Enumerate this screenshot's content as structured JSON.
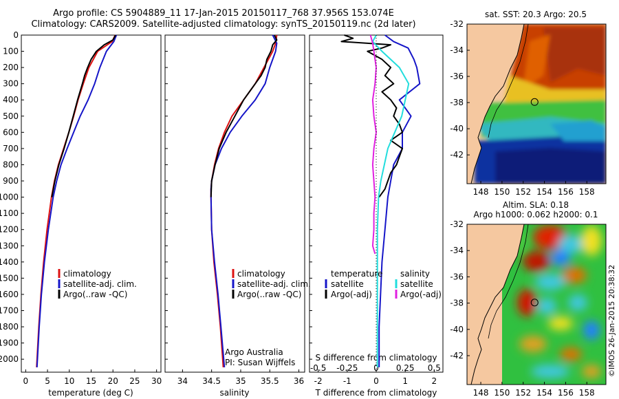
{
  "header": {
    "title_line1": "Argo profile: CS 5904889_11 17-Jan-2015 20150117_768 37.956S 153.074E",
    "title_line2": "Climatology: CARS2009. Satellite-adjusted climatology: synTS_20150119.nc (2d later)"
  },
  "colors": {
    "climatology": "#dd1111",
    "satellite": "#1515c8",
    "argo": "#000000",
    "sat_diff": "#22dddd",
    "argo_diff": "#e020e0",
    "land": "#f5c8a0"
  },
  "chart_data": [
    {
      "id": "temperature",
      "type": "line",
      "xlabel": "temperature (deg C)",
      "ylabel": "",
      "xlim": [
        -1,
        31
      ],
      "ylim": [
        2080,
        0
      ],
      "xticks": [
        "0",
        "5",
        "10",
        "15",
        "20",
        "25",
        "30"
      ],
      "xtick_values": [
        0,
        5,
        10,
        15,
        20,
        25,
        30
      ],
      "yticks": [
        "0",
        "100",
        "200",
        "300",
        "400",
        "500",
        "600",
        "700",
        "800",
        "900",
        "1000",
        "1100",
        "1200",
        "1300",
        "1400",
        "1500",
        "1600",
        "1700",
        "1800",
        "1900",
        "2000"
      ],
      "ytick_values": [
        0,
        100,
        200,
        300,
        400,
        500,
        600,
        700,
        800,
        900,
        1000,
        1100,
        1200,
        1300,
        1400,
        1500,
        1600,
        1700,
        1800,
        1900,
        2000
      ],
      "legend": [
        "climatology",
        "satellite-adj. clim.",
        "Argo(..raw -QC)"
      ],
      "series": [
        {
          "name": "climatology",
          "color_key": "climatology",
          "depth": [
            0,
            40,
            100,
            200,
            300,
            400,
            500,
            600,
            700,
            800,
            900,
            1000,
            1200,
            1400,
            1600,
            1800,
            2050
          ],
          "values": [
            20.5,
            19.8,
            16.5,
            14.5,
            13.2,
            12.0,
            11.0,
            9.9,
            8.7,
            7.5,
            6.6,
            5.9,
            4.9,
            4.1,
            3.5,
            3.0,
            2.5
          ]
        },
        {
          "name": "satellite-adj. clim.",
          "color_key": "satellite",
          "depth": [
            0,
            40,
            100,
            200,
            300,
            400,
            500,
            600,
            700,
            800,
            900,
            1000,
            1200,
            1400,
            1600,
            1800,
            2050
          ],
          "values": [
            20.8,
            20.2,
            18.5,
            17.0,
            15.8,
            14.3,
            12.5,
            11.0,
            9.5,
            8.1,
            7.1,
            6.3,
            5.2,
            4.3,
            3.6,
            3.1,
            2.6
          ]
        },
        {
          "name": "Argo(..raw -QC)",
          "color_key": "argo",
          "depth": [
            0,
            30,
            60,
            100,
            150,
            200,
            250,
            300,
            400,
            500,
            600,
            700,
            800,
            900,
            1000
          ],
          "values": [
            20.6,
            20.0,
            18.0,
            16.2,
            15.0,
            14.2,
            13.5,
            13.0,
            11.9,
            10.9,
            9.9,
            8.8,
            7.6,
            6.7,
            6.0
          ]
        }
      ]
    },
    {
      "id": "salinity",
      "type": "line",
      "xlabel": "salinity",
      "ylabel": "",
      "xlim": [
        33.7,
        36.1
      ],
      "ylim": [
        2080,
        0
      ],
      "xticks": [
        "34",
        "34.5",
        "35",
        "35.5",
        "36"
      ],
      "xtick_values": [
        34,
        34.5,
        35,
        35.5,
        36
      ],
      "legend": [
        "climatology",
        "satellite-adj. clim.",
        "Argo(..raw -QC)"
      ],
      "annotation": [
        "Argo Australia",
        "PI: Susan Wijffels"
      ],
      "series": [
        {
          "name": "climatology",
          "color_key": "climatology",
          "depth": [
            0,
            50,
            100,
            200,
            300,
            400,
            500,
            600,
            700,
            800,
            900,
            950,
            1000,
            1200,
            1400,
            1600,
            1800,
            2050
          ],
          "values": [
            35.62,
            35.6,
            35.55,
            35.4,
            35.25,
            35.05,
            34.85,
            34.72,
            34.62,
            34.55,
            34.5,
            34.49,
            34.49,
            34.5,
            34.54,
            34.6,
            34.65,
            34.7
          ]
        },
        {
          "name": "satellite-adj. clim.",
          "color_key": "satellite",
          "depth": [
            0,
            50,
            100,
            200,
            300,
            400,
            500,
            600,
            700,
            800,
            900,
            950,
            1000,
            1200,
            1400,
            1600,
            1800,
            2050
          ],
          "values": [
            35.55,
            35.62,
            35.6,
            35.5,
            35.42,
            35.25,
            35.02,
            34.82,
            34.67,
            34.56,
            34.5,
            34.49,
            34.49,
            34.5,
            34.55,
            34.61,
            34.66,
            34.72
          ]
        },
        {
          "name": "Argo(..raw -QC)",
          "color_key": "argo",
          "depth": [
            0,
            30,
            60,
            100,
            150,
            200,
            250,
            300,
            400,
            500,
            600,
            700,
            800,
            900,
            1000
          ],
          "values": [
            35.58,
            35.62,
            35.55,
            35.52,
            35.45,
            35.42,
            35.35,
            35.25,
            35.05,
            34.9,
            34.75,
            34.63,
            34.56,
            34.5,
            34.49
          ]
        }
      ]
    },
    {
      "id": "differences",
      "type": "line",
      "xlabel": "T difference from climatology",
      "x2label": "S difference from climatology",
      "xlim": [
        -2.3,
        2.3
      ],
      "ylim": [
        2080,
        0
      ],
      "xticks": [
        "-2",
        "-1",
        "0",
        "1",
        "2"
      ],
      "xtick_values": [
        -2,
        -1,
        0,
        1,
        2
      ],
      "x2ticks": [
        "-0.5",
        "-0.25",
        "0",
        "0.25",
        "0.5"
      ],
      "x2tick_values": [
        -0.5,
        -0.25,
        0,
        0.25,
        0.5
      ],
      "legend_left_title": "temperature",
      "legend_right_title": "salinity",
      "legend_left": [
        "satellite",
        "Argo(-adj)"
      ],
      "legend_right": [
        "satellite",
        "Argo(-adj)"
      ],
      "series": [
        {
          "name": "T satellite",
          "color_key": "satellite",
          "depth": [
            0,
            40,
            80,
            150,
            200,
            300,
            400,
            500,
            600,
            700,
            800,
            900,
            1000,
            1200,
            1400,
            1600,
            1800,
            2050
          ],
          "values": [
            0.3,
            0.6,
            1.1,
            1.3,
            1.4,
            1.5,
            0.8,
            1.2,
            0.9,
            0.9,
            0.6,
            0.5,
            0.4,
            0.3,
            0.2,
            0.15,
            0.1,
            0.1
          ]
        },
        {
          "name": "T Argo(-adj)",
          "color_key": "argo",
          "depth": [
            0,
            20,
            40,
            60,
            80,
            100,
            150,
            200,
            250,
            300,
            350,
            400,
            450,
            500,
            550,
            600,
            650,
            700,
            750,
            800,
            850,
            900,
            950,
            1000
          ],
          "values": [
            -1.1,
            -0.8,
            -1.2,
            0.5,
            0.2,
            -0.3,
            0.2,
            0.5,
            0.3,
            0.6,
            0.2,
            0.5,
            0.7,
            0.6,
            0.8,
            0.9,
            0.5,
            0.9,
            0.8,
            0.7,
            0.5,
            0.4,
            0.3,
            0.1
          ]
        },
        {
          "name": "S satellite",
          "color_key": "sat_diff",
          "depth": [
            0,
            40,
            100,
            200,
            300,
            400,
            500,
            600,
            700,
            800,
            900,
            1000,
            1200,
            1400,
            1600,
            1800,
            2050
          ],
          "values": [
            0.0,
            -0.03,
            0.05,
            0.2,
            0.28,
            0.25,
            0.22,
            0.16,
            0.1,
            0.07,
            0.04,
            0.02,
            0.01,
            0.01,
            0.01,
            0.01,
            0.01
          ]
        },
        {
          "name": "S Argo(-adj)",
          "color_key": "argo_diff",
          "depth": [
            0,
            50,
            100,
            200,
            300,
            400,
            500,
            600,
            700,
            800,
            900,
            1000,
            1100,
            1200,
            1300,
            1350
          ],
          "values": [
            -0.05,
            -0.03,
            -0.02,
            0.0,
            -0.01,
            -0.03,
            -0.02,
            0.0,
            -0.02,
            -0.03,
            -0.02,
            -0.01,
            -0.02,
            -0.02,
            -0.03,
            -0.01
          ]
        }
      ]
    },
    {
      "id": "sst-map",
      "type": "heatmap",
      "title": "sat. SST: 20.3  Argo: 20.5",
      "xticks": [
        "148",
        "150",
        "152",
        "154",
        "156",
        "158"
      ],
      "xtick_values": [
        148,
        150,
        152,
        154,
        156,
        158
      ],
      "yticks": [
        "-32",
        "-34",
        "-36",
        "-38",
        "-40",
        "-42"
      ],
      "ytick_values": [
        -32,
        -34,
        -36,
        -38,
        -40,
        -42
      ],
      "xlim": [
        146.7,
        159.8
      ],
      "ylim": [
        -44.2,
        -32
      ],
      "marker": [
        153.074,
        -37.956
      ]
    },
    {
      "id": "sla-map",
      "type": "heatmap",
      "title_line1": "Altim. SLA: 0.18",
      "title_line2": "Argo h1000: 0.062  h2000: 0.1",
      "xticks": [
        "148",
        "150",
        "152",
        "154",
        "156",
        "158"
      ],
      "xtick_values": [
        148,
        150,
        152,
        154,
        156,
        158
      ],
      "yticks": [
        "-32",
        "-34",
        "-36",
        "-38",
        "-40",
        "-42"
      ],
      "ytick_values": [
        -32,
        -34,
        -36,
        -38,
        -40,
        -42
      ],
      "xlim": [
        146.7,
        159.8
      ],
      "ylim": [
        -44.2,
        -32
      ],
      "marker": [
        153.074,
        -37.956
      ]
    }
  ],
  "footer": {
    "credit": "©IMOS 26-Jan-2015 20:38:32"
  }
}
